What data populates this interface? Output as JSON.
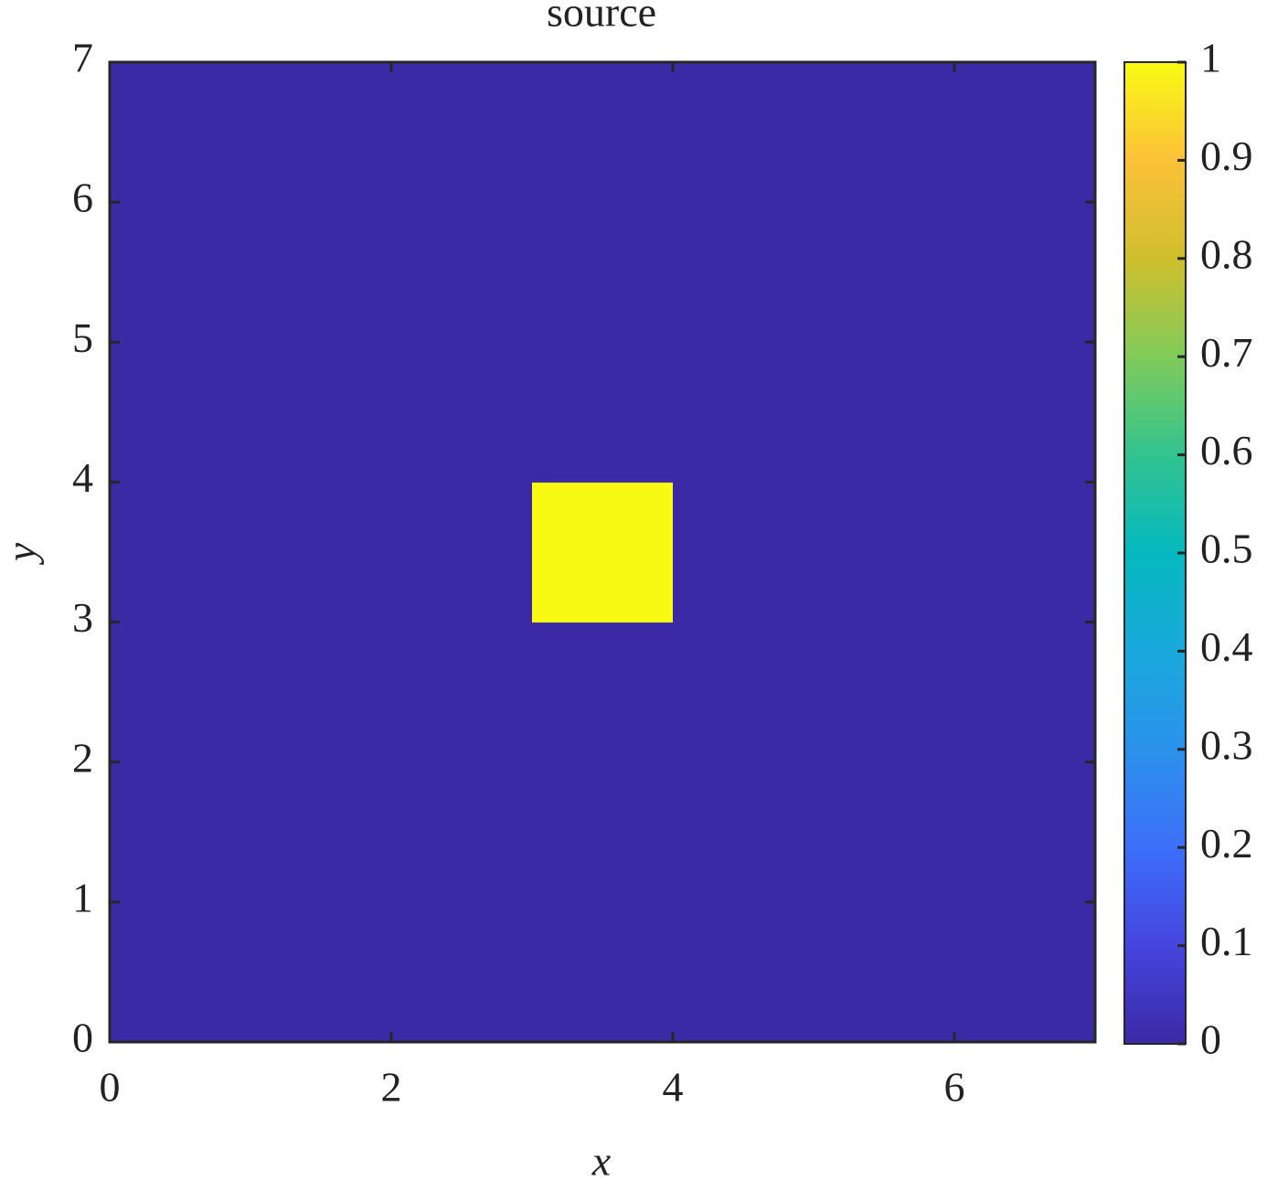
{
  "chart_data": {
    "type": "heatmap",
    "title": "source",
    "xlabel": "x",
    "ylabel": "y",
    "xbins": [
      0,
      1,
      2,
      3,
      4,
      5,
      6,
      7
    ],
    "ybins": [
      0,
      1,
      2,
      3,
      4,
      5,
      6,
      7
    ],
    "values": [
      [
        0,
        0,
        0,
        0,
        0,
        0,
        0
      ],
      [
        0,
        0,
        0,
        0,
        0,
        0,
        0
      ],
      [
        0,
        0,
        0,
        0,
        0,
        0,
        0
      ],
      [
        0,
        0,
        0,
        1,
        0,
        0,
        0
      ],
      [
        0,
        0,
        0,
        0,
        0,
        0,
        0
      ],
      [
        0,
        0,
        0,
        0,
        0,
        0,
        0
      ],
      [
        0,
        0,
        0,
        0,
        0,
        0,
        0
      ]
    ],
    "xlim": [
      0,
      7
    ],
    "ylim": [
      0,
      7
    ],
    "xticks": [
      0,
      2,
      4,
      6
    ],
    "yticks": [
      0,
      1,
      2,
      3,
      4,
      5,
      6,
      7
    ],
    "clim": [
      0,
      1
    ],
    "cticks": [
      0,
      0.1,
      0.2,
      0.3,
      0.4,
      0.5,
      0.6,
      0.7,
      0.8,
      0.9,
      1
    ],
    "colormap": [
      "#3c29a6",
      "#4545df",
      "#3c6ff9",
      "#2b92ec",
      "#1aa9dc",
      "#06b9c0",
      "#32c38f",
      "#80cb5a",
      "#d0bf2c",
      "#fcc139",
      "#f9fa14"
    ]
  }
}
